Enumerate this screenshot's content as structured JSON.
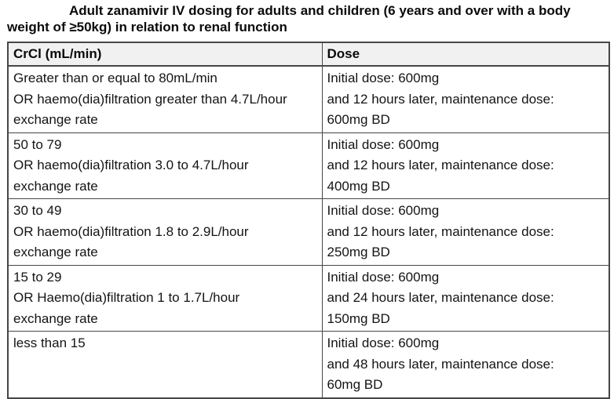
{
  "title": "Adult zanamivir IV dosing for adults and children (6 years and over with a body weight of ≥50kg) in relation to renal function",
  "colors": {
    "header_background": "#f1f1f1",
    "table_border": "#464646",
    "text": "#111111"
  },
  "table": {
    "headers": [
      "CrCl (mL/min)",
      "Dose"
    ],
    "rows": [
      {
        "crcl": [
          "Greater than or equal to 80mL/min",
          "OR haemo(dia)filtration greater than 4.7L/hour",
          "exchange rate"
        ],
        "dose": [
          "Initial dose: 600mg",
          "and 12 hours later, maintenance dose:",
          "600mg BD"
        ]
      },
      {
        "crcl": [
          "50 to 79",
          "OR haemo(dia)filtration 3.0 to 4.7L/hour",
          "exchange rate"
        ],
        "dose": [
          "Initial dose: 600mg",
          "and 12 hours later, maintenance dose:",
          "400mg BD"
        ]
      },
      {
        "crcl": [
          "30 to 49",
          "OR haemo(dia)filtration 1.8 to 2.9L/hour",
          "exchange rate"
        ],
        "dose": [
          "Initial dose: 600mg",
          "and 12 hours later, maintenance dose:",
          "250mg BD"
        ]
      },
      {
        "crcl": [
          "15 to 29",
          "OR Haemo(dia)filtration 1 to 1.7L/hour",
          "exchange rate"
        ],
        "dose": [
          "Initial dose: 600mg",
          "and 24 hours later, maintenance dose:",
          "150mg BD"
        ]
      },
      {
        "crcl": [
          "less than 15"
        ],
        "dose": [
          "Initial dose: 600mg",
          "and 48 hours later, maintenance dose:",
          "60mg BD"
        ]
      }
    ]
  }
}
